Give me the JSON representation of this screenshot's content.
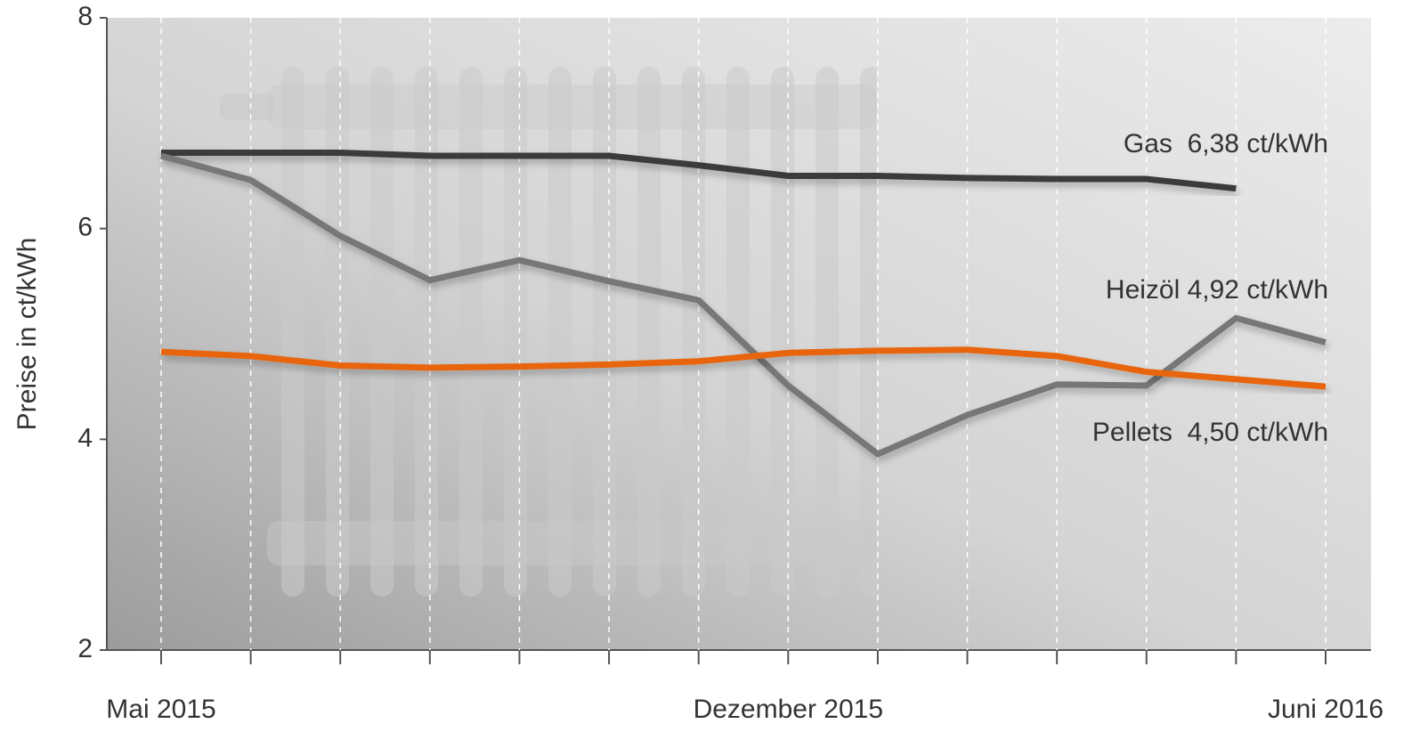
{
  "chart_data": {
    "type": "line",
    "y_label": "Preise in ct/kWh",
    "categories": [
      "Mai 2015",
      null,
      null,
      null,
      null,
      null,
      null,
      "Dezember 2015",
      null,
      null,
      null,
      null,
      null,
      "Juni 2016"
    ],
    "series": [
      {
        "name": "Gas",
        "color": "#3b3b3b",
        "values": [
          6.72,
          6.72,
          6.72,
          6.69,
          6.69,
          6.69,
          6.6,
          6.5,
          6.5,
          6.48,
          6.47,
          6.47,
          6.38,
          null
        ]
      },
      {
        "name": "Heizöl",
        "color": "#777777",
        "values": [
          6.69,
          6.46,
          5.93,
          5.51,
          5.7,
          5.5,
          5.32,
          4.51,
          3.86,
          4.23,
          4.52,
          4.51,
          5.15,
          4.92
        ]
      },
      {
        "name": "Pellets",
        "color": "#e8650a",
        "values": [
          4.83,
          4.79,
          4.7,
          4.68,
          4.69,
          4.71,
          4.74,
          4.82,
          4.84,
          4.85,
          4.79,
          4.64,
          4.57,
          4.5
        ]
      }
    ],
    "annotations": [
      "Gas  6,38 ct/kWh",
      "Heizöl 4,92 ct/kWh",
      "Pellets  4,50 ct/kWh"
    ],
    "ylim": [
      2,
      8
    ],
    "yticks": [
      2,
      4,
      6,
      8
    ],
    "grid": true
  }
}
